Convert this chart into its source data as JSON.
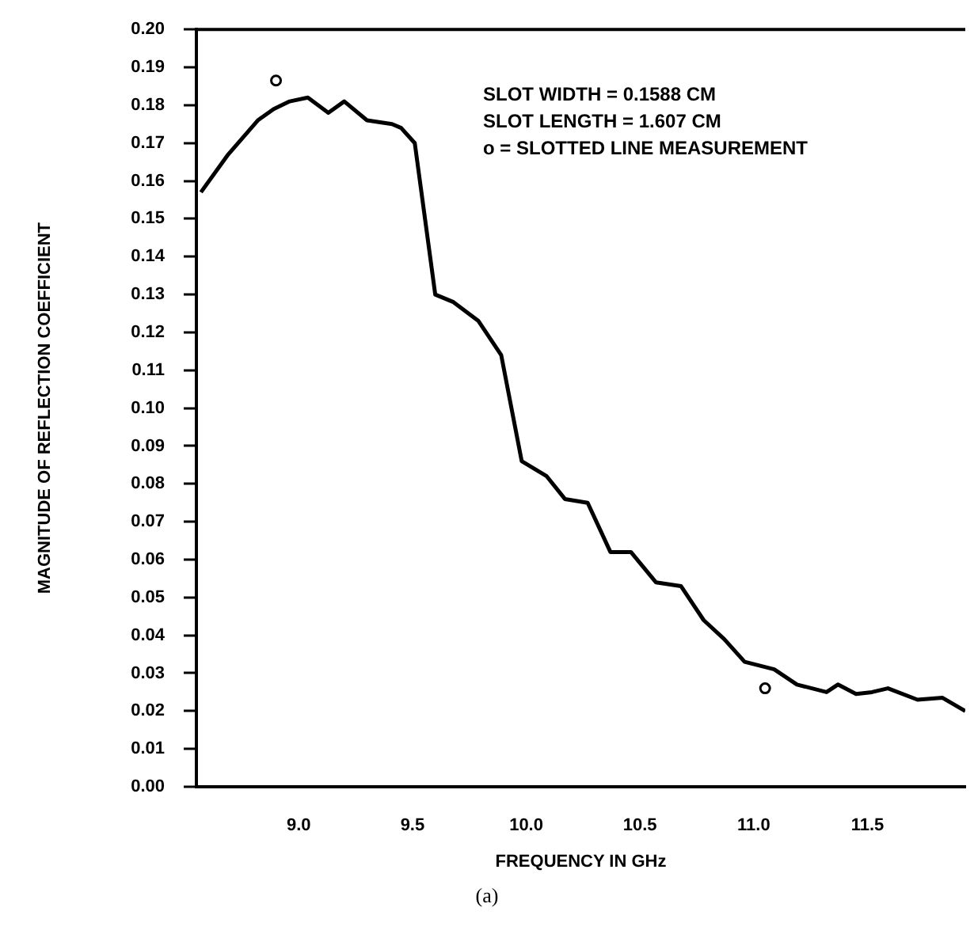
{
  "chart_data": {
    "type": "line",
    "xlabel": "FREQUENCY IN GHz",
    "ylabel": "MAGNITUDE OF REFLECTION COEFFICIENT",
    "xlim": [
      8.55,
      11.93
    ],
    "xticks": [
      {
        "value": 9,
        "label": "9.0"
      },
      9.5,
      {
        "value": 10,
        "label": "10.0"
      },
      10.5,
      {
        "value": 11,
        "label": "11.0"
      },
      11.5
    ],
    "ylim": [
      0,
      0.2
    ],
    "yticks": [
      {
        "value": 0,
        "label": "0.00"
      },
      0.01,
      0.02,
      0.03,
      0.04,
      0.05,
      0.06,
      0.07,
      0.08,
      0.09,
      {
        "value": 0.1,
        "label": "0.10"
      },
      0.11,
      0.12,
      0.13,
      0.14,
      0.15,
      0.16,
      0.17,
      0.18,
      0.19,
      {
        "value": 0.2,
        "label": "0.20"
      }
    ],
    "grid": false,
    "legend": false,
    "series": [
      {
        "color": "#000000",
        "marker": "none",
        "line_style": "solid",
        "x": [
          8.57,
          8.69,
          8.82,
          8.89,
          8.96,
          9.04,
          9.13,
          9.2,
          9.3,
          9.41,
          9.45,
          9.51,
          9.6,
          9.68,
          9.79,
          9.89,
          9.98,
          10.09,
          10.17,
          10.27,
          10.37,
          10.46,
          10.57,
          10.68,
          10.78,
          10.87,
          10.96,
          11.09,
          11.19,
          11.32,
          11.37,
          11.45,
          11.52,
          11.59,
          11.72,
          11.83,
          11.93
        ],
        "values": [
          0.157,
          0.167,
          0.176,
          0.179,
          0.181,
          0.182,
          0.178,
          0.181,
          0.176,
          0.175,
          0.174,
          0.17,
          0.13,
          0.128,
          0.123,
          0.114,
          0.086,
          0.082,
          0.076,
          0.075,
          0.062,
          0.062,
          0.054,
          0.053,
          0.044,
          0.039,
          0.033,
          0.031,
          0.027,
          0.025,
          0.027,
          0.0245,
          0.025,
          0.026,
          0.023,
          0.0235,
          0.02
        ]
      },
      {
        "type": "scatter",
        "color": "#000000",
        "marker": "circle",
        "x": [
          8.9,
          11.05
        ],
        "values": [
          0.1865,
          0.026
        ]
      }
    ],
    "annotations": [
      "SLOT WIDTH = 0.1588 CM",
      "SLOT LENGTH = 1.607 CM",
      "o = SLOTTED LINE MEASUREMENT",
      "(a)"
    ]
  }
}
